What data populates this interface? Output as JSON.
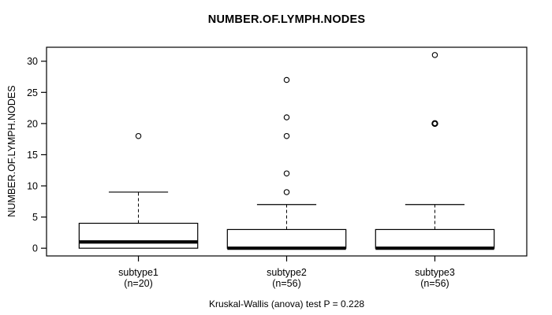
{
  "chart_data": {
    "type": "boxplot",
    "title": "NUMBER.OF.LYMPH.NODES",
    "ylabel": "NUMBER.OF.LYMPH.NODES",
    "xlabel": "",
    "caption": "Kruskal-Wallis (anova) test P = 0.228",
    "yticks": [
      0,
      5,
      10,
      15,
      20,
      25,
      30
    ],
    "ylim": [
      -1.24,
      32.24
    ],
    "xlim": [
      0.38,
      3.62
    ],
    "grid": false,
    "legend": "none",
    "box_width": 0.8,
    "cap_width": 0.4,
    "colors": {
      "line": "#000000",
      "box_fill": "#ffffff",
      "background": "#ffffff"
    },
    "groups": [
      {
        "label": "subtype1",
        "n_label": "(n=20)",
        "x": 1,
        "min": 0,
        "q1": 0,
        "median": 1,
        "q3": 4,
        "whisker_high": 9,
        "outliers": [
          18
        ]
      },
      {
        "label": "subtype2",
        "n_label": "(n=56)",
        "x": 2,
        "min": 0,
        "q1": 0,
        "median": 0,
        "q3": 3,
        "whisker_high": 7,
        "outliers": [
          9,
          12,
          18,
          21,
          27
        ]
      },
      {
        "label": "subtype3",
        "n_label": "(n=56)",
        "x": 3,
        "min": 0,
        "q1": 0,
        "median": 0,
        "q3": 3,
        "whisker_high": 7,
        "outliers": [
          20,
          20,
          31
        ]
      }
    ]
  }
}
